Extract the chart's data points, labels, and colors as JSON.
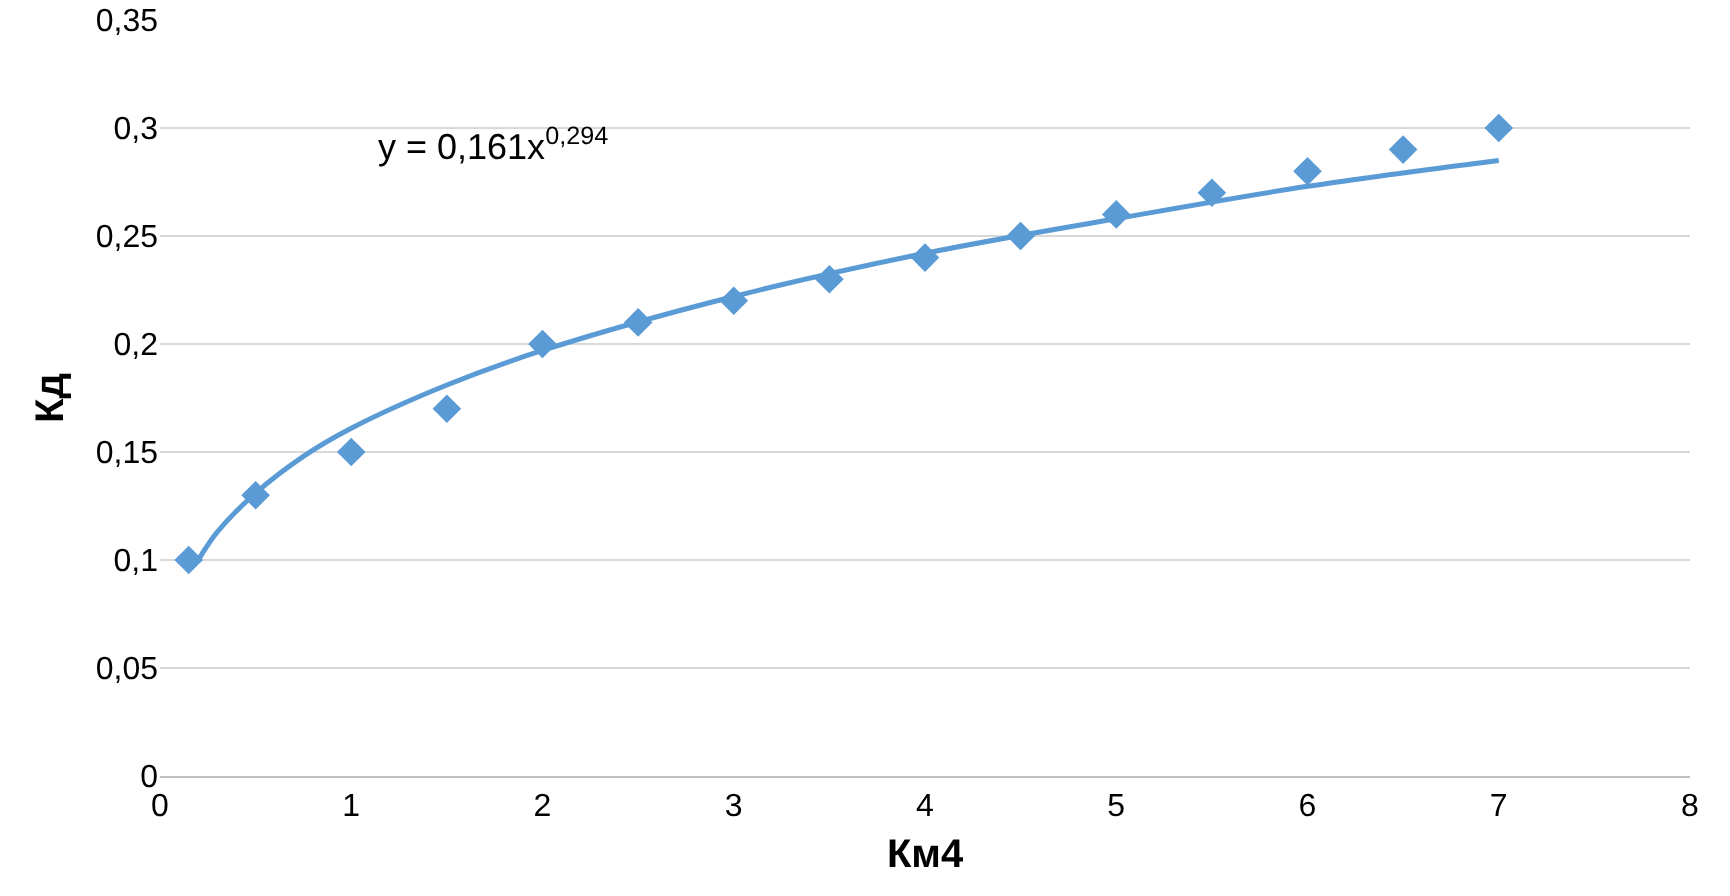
{
  "chart_data": {
    "type": "scatter",
    "xlabel": "Км4",
    "ylabel": "Кд",
    "annotations": [
      "y = 0,161x$^{0,294}$"
    ],
    "series": [
      {
        "color": "#5b9bd5",
        "marker": "diamond",
        "x": [
          0.15,
          0.5,
          1,
          1.5,
          2,
          2.5,
          3,
          3.5,
          4,
          4.5,
          5,
          5.5,
          6,
          6.5,
          7
        ],
        "values": [
          0.1,
          0.13,
          0.15,
          0.17,
          0.2,
          0.21,
          0.22,
          0.23,
          0.24,
          0.25,
          0.26,
          0.27,
          0.28,
          0.29,
          0.3
        ]
      },
      {
        "type": "line",
        "color": "#5b9bd5",
        "marker": "none",
        "line_style": "solid",
        "x": [
          0.2,
          0.3,
          0.5,
          0.75,
          1,
          1.5,
          2,
          3,
          4,
          5,
          6,
          7
        ],
        "values": [
          0.1,
          0.113,
          0.131,
          0.148,
          0.161,
          0.181,
          0.197,
          0.222,
          0.242,
          0.258,
          0.273,
          0.285
        ]
      }
    ],
    "xlim": [
      0,
      8
    ],
    "xticks": [
      0,
      1,
      2,
      3,
      4,
      5,
      6,
      7,
      8
    ],
    "ylim": [
      0,
      0.35
    ],
    "yticks": [
      0,
      {
        "value": 0.05,
        "label": "0,05"
      },
      {
        "value": 0.1,
        "label": "0,1"
      },
      {
        "value": 0.15,
        "label": "0,15"
      },
      {
        "value": 0.2,
        "label": "0,2"
      },
      {
        "value": 0.25,
        "label": "0,25"
      },
      {
        "value": 0.3,
        "label": "0,3"
      },
      {
        "value": 0.35,
        "label": "0,35"
      }
    ],
    "grid": "y",
    "legend": false
  }
}
